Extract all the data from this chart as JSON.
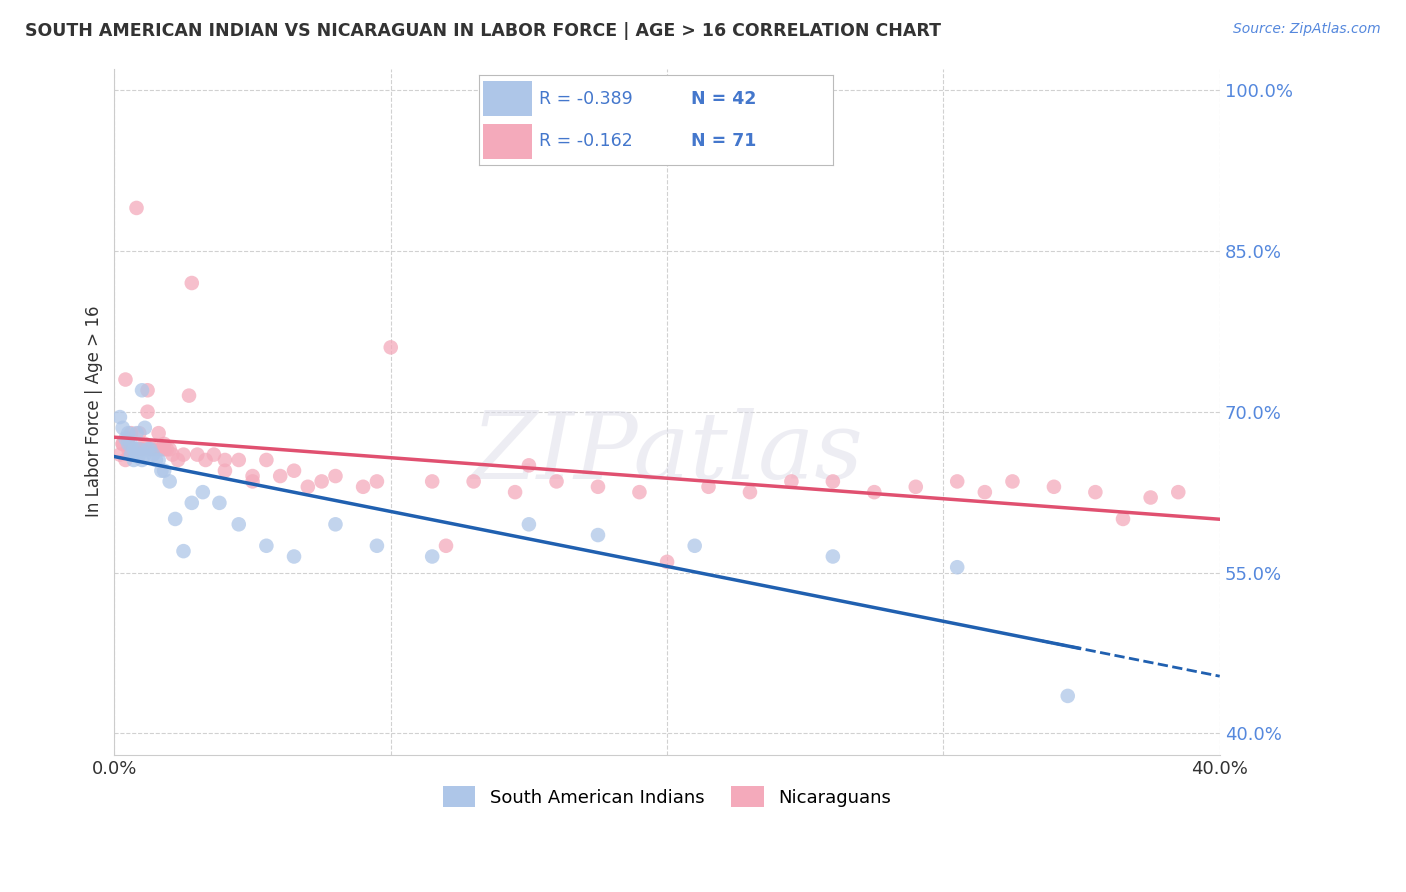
{
  "title": "SOUTH AMERICAN INDIAN VS NICARAGUAN IN LABOR FORCE | AGE > 16 CORRELATION CHART",
  "source": "Source: ZipAtlas.com",
  "ylabel": "In Labor Force | Age > 16",
  "xlim": [
    0.0,
    0.4
  ],
  "ylim": [
    0.38,
    1.02
  ],
  "yticks": [
    0.4,
    0.55,
    0.7,
    0.85,
    1.0
  ],
  "ytick_labels": [
    "40.0%",
    "55.0%",
    "70.0%",
    "85.0%",
    "100.0%"
  ],
  "xticks": [
    0.0,
    0.1,
    0.2,
    0.3,
    0.4
  ],
  "xtick_labels": [
    "0.0%",
    "",
    "",
    "",
    "40.0%"
  ],
  "blue_R": -0.389,
  "blue_N": 42,
  "pink_R": -0.162,
  "pink_N": 71,
  "blue_color": "#AEC6E8",
  "pink_color": "#F4AABB",
  "blue_line_color": "#2060B0",
  "pink_line_color": "#E05070",
  "legend_text_color": "#4477CC",
  "tick_color": "#5588DD",
  "watermark": "ZIPatlas",
  "blue_scatter_x": [
    0.002,
    0.003,
    0.004,
    0.005,
    0.005,
    0.006,
    0.006,
    0.007,
    0.007,
    0.008,
    0.008,
    0.009,
    0.009,
    0.01,
    0.01,
    0.011,
    0.011,
    0.012,
    0.013,
    0.014,
    0.015,
    0.016,
    0.017,
    0.018,
    0.02,
    0.022,
    0.025,
    0.028,
    0.032,
    0.038,
    0.045,
    0.055,
    0.065,
    0.08,
    0.095,
    0.115,
    0.15,
    0.175,
    0.21,
    0.26,
    0.305,
    0.345
  ],
  "blue_scatter_y": [
    0.695,
    0.685,
    0.675,
    0.68,
    0.67,
    0.67,
    0.66,
    0.665,
    0.655,
    0.66,
    0.68,
    0.66,
    0.665,
    0.655,
    0.72,
    0.66,
    0.685,
    0.665,
    0.665,
    0.66,
    0.655,
    0.655,
    0.645,
    0.645,
    0.635,
    0.6,
    0.57,
    0.615,
    0.625,
    0.615,
    0.595,
    0.575,
    0.565,
    0.595,
    0.575,
    0.565,
    0.595,
    0.585,
    0.575,
    0.565,
    0.555,
    0.435
  ],
  "pink_scatter_x": [
    0.002,
    0.003,
    0.004,
    0.005,
    0.005,
    0.006,
    0.007,
    0.008,
    0.009,
    0.01,
    0.011,
    0.012,
    0.013,
    0.014,
    0.015,
    0.016,
    0.017,
    0.018,
    0.019,
    0.02,
    0.021,
    0.023,
    0.025,
    0.027,
    0.03,
    0.033,
    0.036,
    0.04,
    0.045,
    0.05,
    0.055,
    0.06,
    0.065,
    0.07,
    0.08,
    0.09,
    0.1,
    0.115,
    0.13,
    0.145,
    0.16,
    0.175,
    0.19,
    0.2,
    0.215,
    0.23,
    0.245,
    0.26,
    0.275,
    0.29,
    0.305,
    0.315,
    0.325,
    0.34,
    0.355,
    0.365,
    0.375,
    0.385,
    0.15,
    0.12,
    0.095,
    0.075,
    0.05,
    0.04,
    0.028,
    0.018,
    0.012,
    0.008,
    0.006,
    0.004,
    0.003
  ],
  "pink_scatter_y": [
    0.66,
    0.67,
    0.655,
    0.665,
    0.675,
    0.68,
    0.665,
    0.665,
    0.68,
    0.665,
    0.67,
    0.72,
    0.665,
    0.665,
    0.665,
    0.68,
    0.665,
    0.67,
    0.665,
    0.665,
    0.66,
    0.655,
    0.66,
    0.715,
    0.66,
    0.655,
    0.66,
    0.645,
    0.655,
    0.64,
    0.655,
    0.64,
    0.645,
    0.63,
    0.64,
    0.63,
    0.76,
    0.635,
    0.635,
    0.625,
    0.635,
    0.63,
    0.625,
    0.56,
    0.63,
    0.625,
    0.635,
    0.635,
    0.625,
    0.63,
    0.635,
    0.625,
    0.635,
    0.63,
    0.625,
    0.6,
    0.62,
    0.625,
    0.65,
    0.575,
    0.635,
    0.635,
    0.635,
    0.655,
    0.82,
    0.665,
    0.7,
    0.89,
    0.665,
    0.73,
    0.67
  ]
}
